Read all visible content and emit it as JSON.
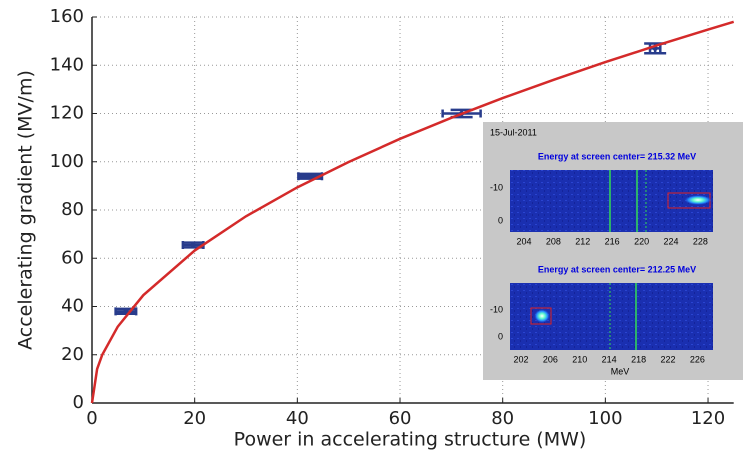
{
  "chart_data": {
    "type": "scatter",
    "xlabel": "Power in accelerating structure (MW)",
    "ylabel": "Accelerating gradient (MV/m)",
    "xlim": [
      0,
      125
    ],
    "ylim": [
      0,
      160
    ],
    "xticks": [
      0,
      20,
      40,
      60,
      80,
      100,
      120
    ],
    "yticks": [
      0,
      20,
      40,
      60,
      80,
      100,
      120,
      140,
      160
    ],
    "grid": true,
    "series": [
      {
        "style": "errorbar",
        "color": "#283c8c",
        "x": [
          6.6,
          19.7,
          42.5,
          72,
          109.7
        ],
        "values": [
          38,
          65.5,
          94,
          120,
          147
        ],
        "xerr": [
          2,
          2,
          2.3,
          3.7,
          1
        ],
        "yerr": [
          1,
          1,
          1,
          1.5,
          2
        ]
      },
      {
        "style": "line",
        "color": "#d42a2a",
        "x": [
          0,
          1,
          2,
          5,
          10,
          20,
          30,
          40,
          50,
          60,
          70,
          80,
          90,
          100,
          110,
          120,
          125
        ],
        "values": [
          0,
          14.1,
          20.0,
          31.6,
          44.7,
          63.2,
          77.4,
          89.4,
          99.9,
          109.5,
          118.2,
          126.4,
          134.0,
          141.3,
          148.2,
          154.8,
          158.0
        ]
      }
    ]
  },
  "inset": {
    "date": "15-Jul-2011",
    "xlabel": "MeV",
    "panels": [
      {
        "title": "Energy at screen center= 215.32 MeV",
        "yticks": [
          "-10",
          "0"
        ],
        "xticks": [
          "204",
          "208",
          "212",
          "216",
          "220",
          "224",
          "228"
        ]
      },
      {
        "title": "Energy at screen center= 212.25 MeV",
        "yticks": [
          "-10",
          "0"
        ],
        "xticks": [
          "202",
          "206",
          "210",
          "214",
          "218",
          "222",
          "226"
        ]
      }
    ]
  }
}
